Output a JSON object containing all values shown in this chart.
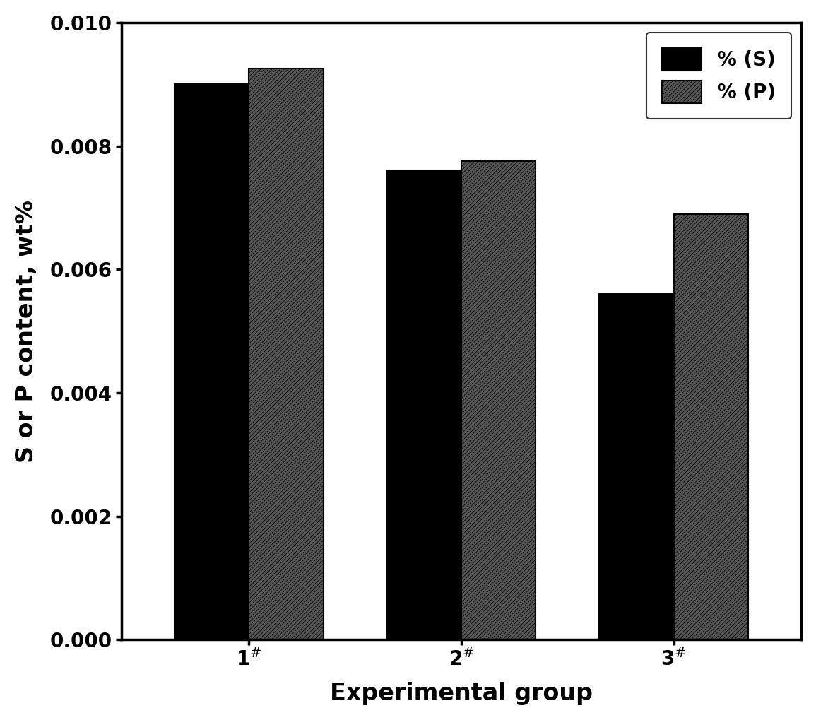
{
  "categories": [
    "1$^{\\#}$",
    "2$^{\\#}$",
    "3$^{\\#}$"
  ],
  "S_values": [
    0.009,
    0.0076,
    0.0056
  ],
  "P_values": [
    0.00925,
    0.00775,
    0.0069
  ],
  "bar_color_S": "#000000",
  "bar_color_P": "#555555",
  "hatch_color": "#aaaaaa",
  "ylabel": "S or P content, wt%",
  "xlabel": "Experimental group",
  "ylim": [
    0,
    0.01
  ],
  "yticks": [
    0.0,
    0.002,
    0.004,
    0.006,
    0.008,
    0.01
  ],
  "legend_S": "% (S)",
  "legend_P": "% (P)",
  "bar_width": 0.35,
  "background_color": "#ffffff",
  "tick_labelsize": 20,
  "axis_labelsize": 24,
  "legend_fontsize": 20
}
